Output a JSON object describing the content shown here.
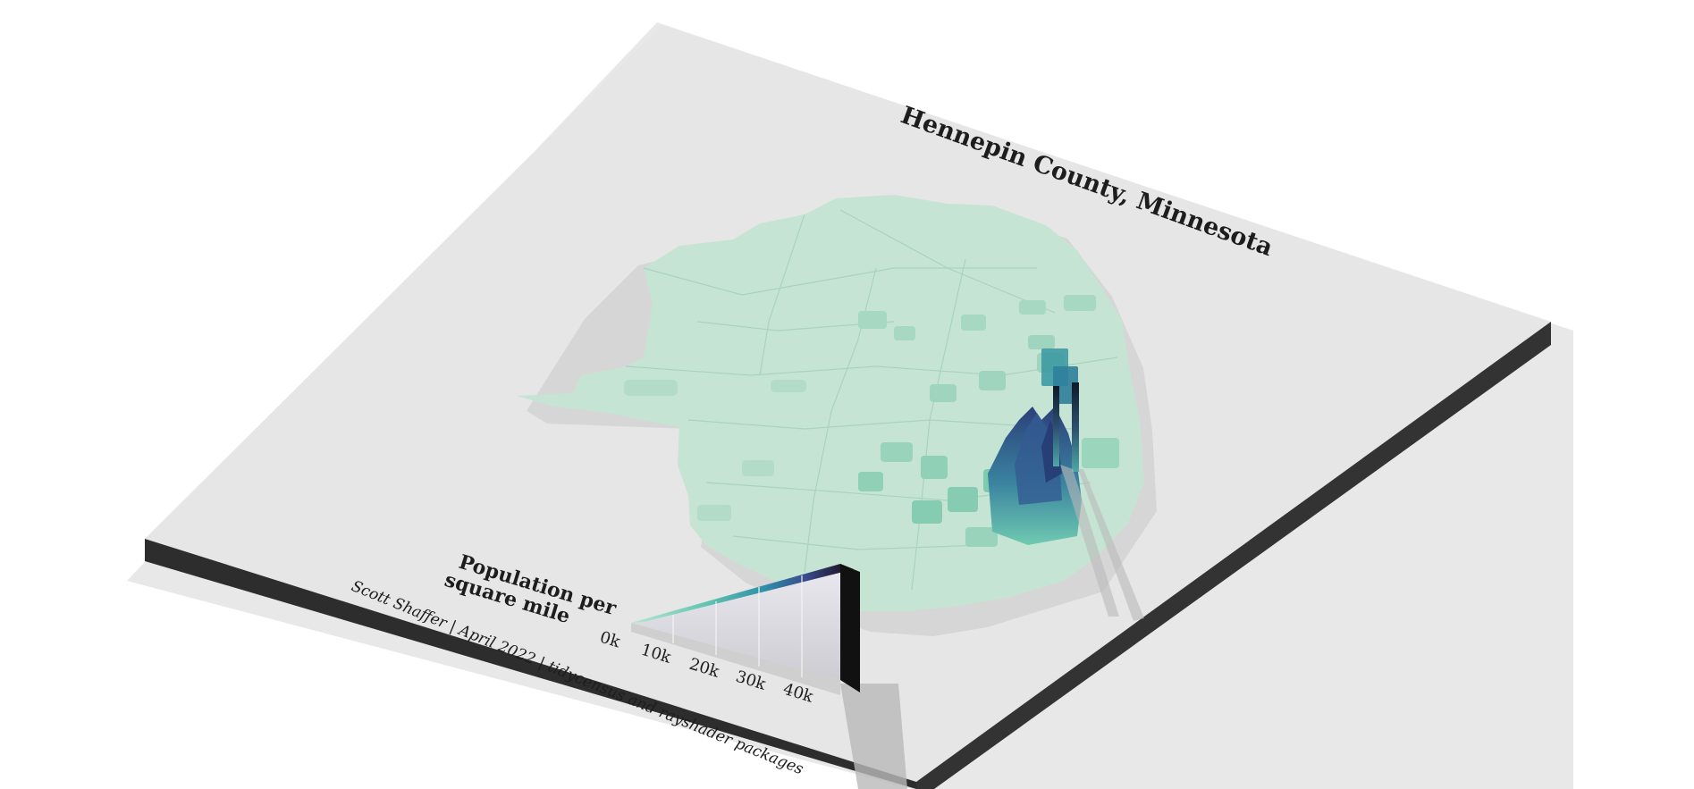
{
  "map": {
    "title": "Hennepin County, Minnesota",
    "region": "Hennepin County",
    "base_color": "#cbe7d9",
    "district_color": "#b7e0cc",
    "peak_color": "#1f2a4f",
    "table_color": "#e6e6e6",
    "edge_color": "#333333"
  },
  "legend": {
    "title_line1": "Population per",
    "title_line2": "square mile",
    "ticks": [
      "0k",
      "10k",
      "20k",
      "30k",
      "40k"
    ],
    "gradient": [
      "#b7ead0",
      "#5fc3b0",
      "#2f8fa6",
      "#3a4c8f",
      "#25203e",
      "#111111"
    ]
  },
  "credit": {
    "text": "Scott Shaffer | April 2022 | tidycensus and rayshader packages"
  }
}
